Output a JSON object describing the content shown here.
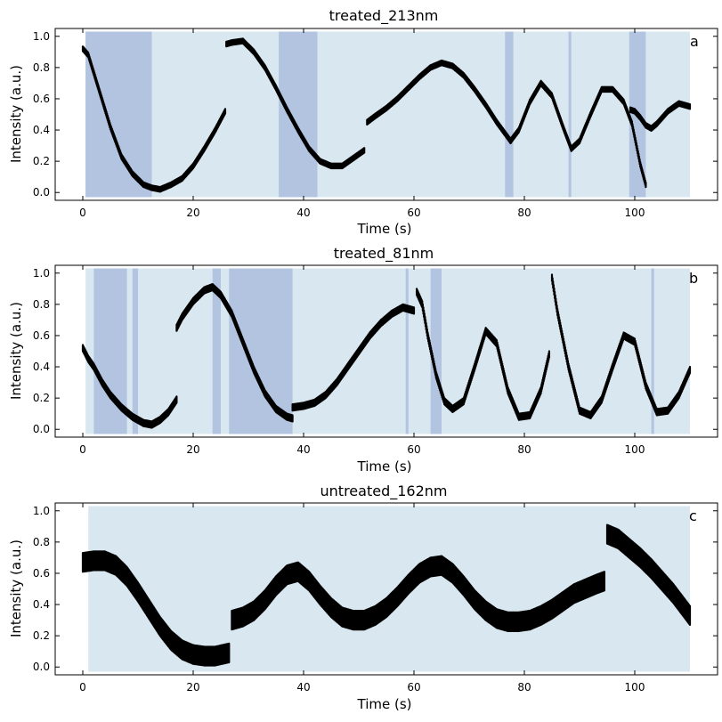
{
  "chart_data": [
    {
      "type": "scatter",
      "title": "treated_213nm",
      "panel_label": "a",
      "xlabel": "Time (s)",
      "ylabel": "Intensity (a.u.)",
      "xlim": [
        -5,
        115
      ],
      "ylim": [
        -0.05,
        1.05
      ],
      "xticks": [
        0,
        20,
        40,
        60,
        80,
        100
      ],
      "yticks": [
        0.0,
        0.2,
        0.4,
        0.6,
        0.8,
        1.0
      ],
      "xtick_labels": [
        "0",
        "20",
        "40",
        "60",
        "80",
        "100"
      ],
      "ytick_labels": [
        "0.0",
        "0.2",
        "0.4",
        "0.6",
        "0.8",
        "1.0"
      ],
      "background_span": [
        0.5,
        110
      ],
      "highlight_spans": [
        [
          0.5,
          12.5
        ],
        [
          35.5,
          42.5
        ],
        [
          76.5,
          78
        ],
        [
          88,
          88.5
        ],
        [
          99,
          102
        ]
      ],
      "spread": 0.03,
      "segments": [
        {
          "x": [
            0,
            1,
            3,
            5,
            7,
            9,
            11,
            12.5,
            14,
            16,
            18,
            20,
            22,
            24,
            25.8
          ],
          "y": [
            0.92,
            0.88,
            0.65,
            0.42,
            0.23,
            0.12,
            0.05,
            0.03,
            0.02,
            0.05,
            0.09,
            0.17,
            0.28,
            0.4,
            0.52
          ]
        },
        {
          "x": [
            26,
            27,
            29,
            31,
            33,
            35,
            37,
            39,
            41,
            43,
            45,
            47,
            49,
            51
          ],
          "y": [
            0.95,
            0.96,
            0.97,
            0.9,
            0.8,
            0.67,
            0.53,
            0.4,
            0.28,
            0.2,
            0.17,
            0.17,
            0.22,
            0.27
          ]
        },
        {
          "x": [
            51.5,
            53,
            55,
            57,
            59,
            61,
            63,
            65,
            67,
            69,
            71,
            73,
            75,
            77.5
          ],
          "y": [
            0.45,
            0.49,
            0.54,
            0.6,
            0.67,
            0.74,
            0.8,
            0.83,
            0.81,
            0.75,
            0.66,
            0.56,
            0.45,
            0.33
          ]
        },
        {
          "x": [
            77.5,
            79,
            81,
            83,
            85,
            87,
            88.5,
            90,
            92,
            94,
            96,
            98,
            99.5,
            101,
            102
          ],
          "y": [
            0.33,
            0.4,
            0.58,
            0.7,
            0.62,
            0.42,
            0.28,
            0.33,
            0.5,
            0.66,
            0.66,
            0.58,
            0.44,
            0.18,
            0.05
          ]
        },
        {
          "x": [
            99.2,
            100,
            101,
            102,
            103,
            104,
            106,
            108,
            110
          ],
          "y": [
            0.53,
            0.52,
            0.48,
            0.43,
            0.41,
            0.44,
            0.52,
            0.57,
            0.55
          ]
        }
      ]
    },
    {
      "type": "scatter",
      "title": "treated_81nm",
      "panel_label": "b",
      "xlabel": "Time (s)",
      "ylabel": "Intensity (a.u.)",
      "xlim": [
        -5,
        115
      ],
      "ylim": [
        -0.05,
        1.05
      ],
      "xticks": [
        0,
        20,
        40,
        60,
        80,
        100
      ],
      "yticks": [
        0.0,
        0.2,
        0.4,
        0.6,
        0.8,
        1.0
      ],
      "xtick_labels": [
        "0",
        "20",
        "40",
        "60",
        "80",
        "100"
      ],
      "ytick_labels": [
        "0.0",
        "0.2",
        "0.4",
        "0.6",
        "0.8",
        "1.0"
      ],
      "background_span": [
        0.5,
        110
      ],
      "highlight_spans": [
        [
          2,
          8
        ],
        [
          9,
          10
        ],
        [
          23.5,
          25
        ],
        [
          26.5,
          38
        ],
        [
          58.5,
          59
        ],
        [
          63,
          65
        ],
        [
          103,
          103.5
        ]
      ],
      "spread": 0.04,
      "segments": [
        {
          "x": [
            0,
            1,
            2,
            3.5,
            5,
            7,
            9,
            11,
            12.5,
            14,
            15.5,
            17
          ],
          "y": [
            0.52,
            0.45,
            0.4,
            0.3,
            0.22,
            0.14,
            0.08,
            0.04,
            0.03,
            0.06,
            0.11,
            0.19
          ]
        },
        {
          "x": [
            17,
            18,
            20,
            22,
            23.5,
            25,
            27,
            29,
            31,
            33,
            35,
            37,
            38
          ],
          "y": [
            0.65,
            0.72,
            0.82,
            0.89,
            0.91,
            0.86,
            0.74,
            0.56,
            0.38,
            0.23,
            0.13,
            0.08,
            0.07
          ]
        },
        {
          "x": [
            38,
            40,
            42,
            44,
            46,
            48,
            50,
            52,
            54,
            56,
            58,
            60
          ],
          "y": [
            0.14,
            0.15,
            0.17,
            0.22,
            0.3,
            0.4,
            0.5,
            0.6,
            0.68,
            0.74,
            0.78,
            0.76
          ]
        },
        {
          "x": [
            60.5,
            61.5,
            62.5,
            64,
            65.5,
            67,
            69,
            71,
            73,
            75,
            77,
            79,
            81,
            83,
            84.5
          ],
          "y": [
            0.88,
            0.8,
            0.6,
            0.35,
            0.18,
            0.13,
            0.18,
            0.4,
            0.63,
            0.55,
            0.25,
            0.08,
            0.09,
            0.25,
            0.48
          ]
        },
        {
          "x": [
            85,
            86,
            88,
            90,
            92,
            94,
            96,
            98,
            100,
            102,
            104,
            106,
            108,
            110
          ],
          "y": [
            0.97,
            0.75,
            0.4,
            0.12,
            0.09,
            0.19,
            0.4,
            0.6,
            0.56,
            0.28,
            0.11,
            0.12,
            0.22,
            0.38
          ]
        }
      ]
    },
    {
      "type": "scatter",
      "title": "untreated_162nm",
      "panel_label": "c",
      "xlabel": "Time (s)",
      "ylabel": "Intensity (a.u.)",
      "xlim": [
        -5,
        115
      ],
      "ylim": [
        -0.05,
        1.05
      ],
      "xticks": [
        0,
        20,
        40,
        60,
        80,
        100
      ],
      "yticks": [
        0.0,
        0.2,
        0.4,
        0.6,
        0.8,
        1.0
      ],
      "xtick_labels": [
        "0",
        "20",
        "40",
        "60",
        "80",
        "100"
      ],
      "ytick_labels": [
        "0.0",
        "0.2",
        "0.4",
        "0.6",
        "0.8",
        "1.0"
      ],
      "background_span": [
        1,
        110
      ],
      "highlight_spans": [],
      "spread": 0.12,
      "segments": [
        {
          "x": [
            0,
            2,
            4,
            6,
            8,
            10,
            12,
            14,
            16,
            18,
            20,
            22,
            24,
            26.5
          ],
          "y": [
            0.67,
            0.68,
            0.68,
            0.65,
            0.58,
            0.48,
            0.37,
            0.26,
            0.17,
            0.11,
            0.08,
            0.07,
            0.07,
            0.09
          ]
        },
        {
          "x": [
            27,
            29,
            31,
            33,
            35,
            37,
            39,
            41,
            43,
            45,
            47,
            49,
            51,
            53,
            55,
            57,
            59,
            61,
            63,
            65,
            67,
            69,
            71,
            73,
            75,
            77,
            79,
            81,
            83,
            85,
            87,
            89,
            91,
            93,
            94.5
          ],
          "y": [
            0.3,
            0.32,
            0.36,
            0.43,
            0.52,
            0.59,
            0.61,
            0.55,
            0.46,
            0.38,
            0.32,
            0.3,
            0.3,
            0.33,
            0.38,
            0.45,
            0.53,
            0.6,
            0.64,
            0.65,
            0.6,
            0.52,
            0.43,
            0.36,
            0.31,
            0.29,
            0.29,
            0.3,
            0.33,
            0.37,
            0.42,
            0.47,
            0.5,
            0.53,
            0.55
          ]
        },
        {
          "x": [
            95,
            97,
            99,
            101,
            103,
            105,
            107,
            108.5,
            110
          ],
          "y": [
            0.85,
            0.82,
            0.76,
            0.7,
            0.63,
            0.55,
            0.47,
            0.4,
            0.33
          ]
        }
      ]
    }
  ]
}
